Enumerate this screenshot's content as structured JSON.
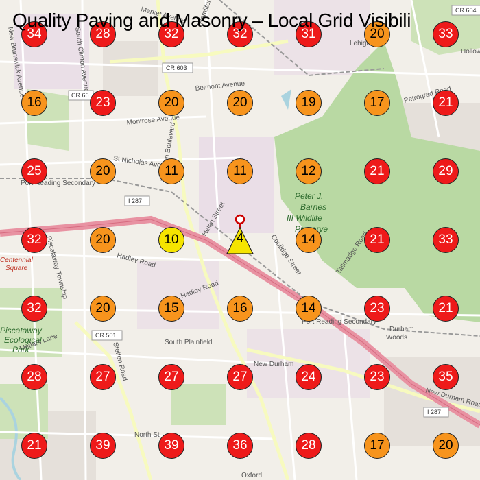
{
  "title": "Quality Paving and Masonry – Local Grid Visibili",
  "colors": {
    "red": "#ee1a1a",
    "orange": "#f7941d",
    "yellow": "#f5e400"
  },
  "business": {
    "rank": "4",
    "icon": "triangle-pin-icon"
  },
  "grid": [
    [
      "34",
      "28",
      "32",
      "32",
      "31",
      "20",
      "33"
    ],
    [
      "16",
      "23",
      "20",
      "20",
      "19",
      "17",
      "21"
    ],
    [
      "25",
      "20",
      "11",
      "11",
      "12",
      "21",
      "29"
    ],
    [
      "32",
      "20",
      "10",
      "",
      "14",
      "21",
      "33"
    ],
    [
      "32",
      "20",
      "15",
      "16",
      "14",
      "23",
      "21"
    ],
    [
      "28",
      "27",
      "27",
      "27",
      "24",
      "23",
      "35"
    ],
    [
      "21",
      "39",
      "39",
      "36",
      "28",
      "17",
      "20"
    ]
  ],
  "grid_colors": [
    [
      "red",
      "red",
      "red",
      "red",
      "red",
      "orange",
      "red"
    ],
    [
      "orange",
      "red",
      "orange",
      "orange",
      "orange",
      "orange",
      "red"
    ],
    [
      "red",
      "orange",
      "orange",
      "orange",
      "orange",
      "red",
      "red"
    ],
    [
      "red",
      "orange",
      "yellow",
      "",
      "orange",
      "red",
      "red"
    ],
    [
      "red",
      "orange",
      "orange",
      "orange",
      "orange",
      "red",
      "red"
    ],
    [
      "red",
      "red",
      "red",
      "red",
      "red",
      "red",
      "red"
    ],
    [
      "red",
      "red",
      "red",
      "red",
      "red",
      "orange",
      "orange"
    ]
  ],
  "map_labels": {
    "market_ave": "Market Avenue",
    "new_brunswick_ave": "New Brunswick Avenue",
    "south_clinton_ave": "South Clinton Avenue",
    "hamilton_blvd": "Hamilton Boulevard",
    "hamilton_blvd_2": "Hamilton Boulevard",
    "cr603": "CR 603",
    "cr604": "CR 604",
    "cr66": "CR 66",
    "cr501": "CR 501",
    "belmont": "Belmont Avenue",
    "montrose": "Montrose Avenue",
    "st_nicholas": "St Nicholas Avenue",
    "port_reading": "Port Reading Secondary",
    "port_reading_2": "Port Reading Secondary",
    "i287": "I 287",
    "i287_2": "I 287",
    "helen": "Helen Street",
    "coolidge": "Coolidge Street",
    "hadley": "Hadley Road",
    "hadley_2": "Hadley Road",
    "tallmadge": "Tallmadge Road",
    "park_l1": "Peter J.",
    "park_l2": "Barnes",
    "park_l3": "III Wildlife",
    "park_l4": "Preserve",
    "centennial_1": "Centennial",
    "centennial_2": "Square",
    "township": "Piscataway Township",
    "eco_1": "Piscataway",
    "eco_2": "Ecological",
    "eco_3": "Park",
    "metlars": "Metlars Lane",
    "stelton": "Stelton Road",
    "south_plainfield": "South Plainfield",
    "new_durham": "New Durham",
    "new_durham_road": "New Durham Road",
    "durham_1": "Durham",
    "durham_2": "Woods",
    "north_st": "North St",
    "oxford": "Oxford",
    "petrograd": "Petrograd Road",
    "lehigh": "Lehigh",
    "hollow": "Hollow"
  }
}
